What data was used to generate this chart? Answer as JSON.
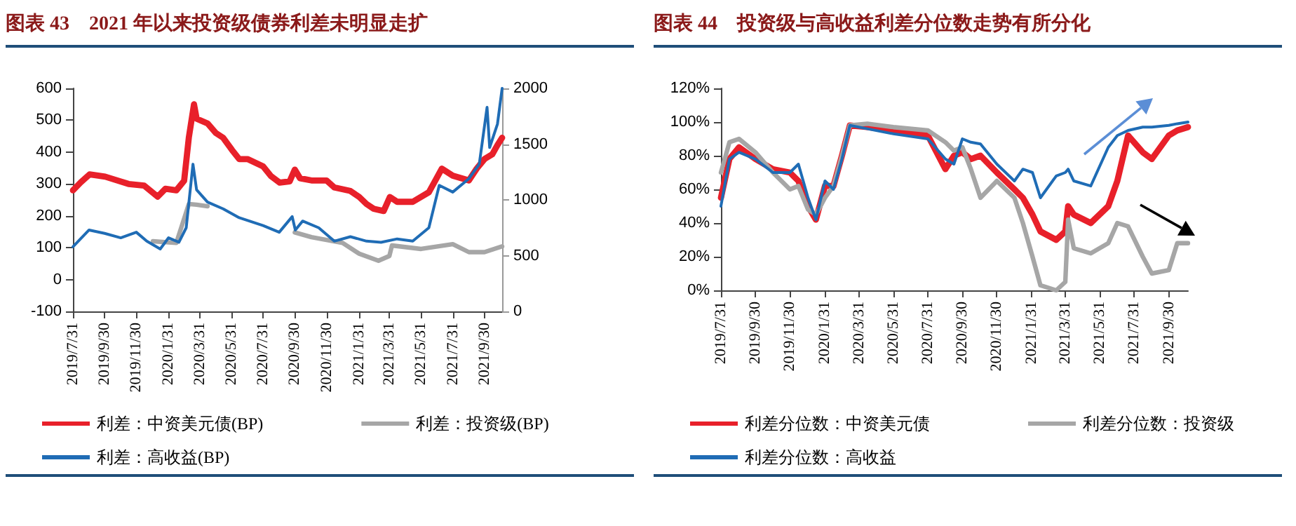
{
  "chart_data": [
    {
      "type": "line",
      "title": "图表 43　2021 年以来投资级债券利差未明显走扩",
      "legend": "bottom",
      "grid": false,
      "marker": "none",
      "line_style": "solid",
      "xlim": [
        "2019-07-31",
        "2021-11-03"
      ],
      "xticks": [
        {
          "value": "2019-07-31",
          "label": "2019/7/31"
        },
        {
          "value": "2019-09-30",
          "label": "2019/9/30"
        },
        {
          "value": "2019-11-30",
          "label": "2019/11/30"
        },
        {
          "value": "2020-01-31",
          "label": "2020/1/31"
        },
        {
          "value": "2020-03-31",
          "label": "2020/3/31"
        },
        {
          "value": "2020-05-31",
          "label": "2020/5/31"
        },
        {
          "value": "2020-07-31",
          "label": "2020/7/31"
        },
        {
          "value": "2020-09-30",
          "label": "2020/9/30"
        },
        {
          "value": "2020-11-30",
          "label": "2020/11/30"
        },
        {
          "value": "2021-01-31",
          "label": "2021/1/31"
        },
        {
          "value": "2021-03-31",
          "label": "2021/3/31"
        },
        {
          "value": "2021-05-31",
          "label": "2021/5/31"
        },
        {
          "value": "2021-07-31",
          "label": "2021/7/31"
        },
        {
          "value": "2021-09-30",
          "label": "2021/9/30"
        }
      ],
      "ylim": [
        -100,
        600
      ],
      "yticks": [
        -100,
        0,
        100,
        200,
        300,
        400,
        500,
        600
      ],
      "y2lim": [
        0,
        2000
      ],
      "y2ticks": [
        0,
        500,
        1000,
        1500,
        2000
      ],
      "series": [
        {
          "name": "利差：中资美元债(BP)",
          "color": "#e8202a",
          "x": [
            "2019-07-31",
            "2019-08-15",
            "2019-09-01",
            "2019-10-01",
            "2019-11-15",
            "2019-12-15",
            "2020-01-10",
            "2020-01-25",
            "2020-02-15",
            "2020-03-01",
            "2020-03-10",
            "2020-03-20",
            "2020-03-25",
            "2020-04-15",
            "2020-05-01",
            "2020-05-15",
            "2020-06-01",
            "2020-06-15",
            "2020-07-01",
            "2020-07-31",
            "2020-08-15",
            "2020-09-01",
            "2020-09-20",
            "2020-09-30",
            "2020-10-10",
            "2020-11-01",
            "2020-11-30",
            "2020-12-15",
            "2021-01-15",
            "2021-02-01",
            "2021-02-15",
            "2021-03-01",
            "2021-03-20",
            "2021-04-01",
            "2021-04-15",
            "2021-05-15",
            "2021-06-15",
            "2021-07-10",
            "2021-07-31",
            "2021-08-31",
            "2021-09-15",
            "2021-09-30",
            "2021-10-15",
            "2021-10-25",
            "2021-11-03"
          ],
          "values": [
            280,
            305,
            330,
            323,
            300,
            295,
            260,
            285,
            280,
            310,
            445,
            550,
            505,
            490,
            460,
            445,
            407,
            378,
            378,
            355,
            325,
            304,
            308,
            345,
            318,
            311,
            311,
            289,
            278,
            259,
            237,
            222,
            215,
            259,
            244,
            244,
            274,
            348,
            326,
            311,
            348,
            378,
            393,
            422,
            445
          ]
        },
        {
          "name": "利差：投资级(BP)",
          "color": "#a6a6a6",
          "x": [
            "2020-01-01",
            "2020-02-15",
            "2020-03-10",
            "2020-03-25",
            "2020-04-15",
            "2020-05-15",
            "2020-08-31",
            "2020-09-30",
            "2020-11-01",
            "2020-12-31",
            "2021-02-01",
            "2021-03-10",
            "2021-03-31",
            "2021-04-05",
            "2021-05-31",
            "2021-07-31",
            "2021-08-31",
            "2021-09-30",
            "2021-11-03"
          ],
          "values": [
            120,
            115,
            237,
            235,
            230,
            null,
            null,
            148,
            133,
            115,
            81,
            59,
            74,
            107,
            96,
            111,
            86,
            86,
            104
          ]
        },
        {
          "name": "利差：高收益(BP)",
          "color": "#1f6cb5",
          "axis": "y2",
          "x": [
            "2019-07-31",
            "2019-08-31",
            "2019-09-30",
            "2019-10-31",
            "2019-11-30",
            "2019-12-20",
            "2020-01-15",
            "2020-01-31",
            "2020-02-20",
            "2020-03-05",
            "2020-03-18",
            "2020-03-25",
            "2020-04-15",
            "2020-05-15",
            "2020-06-15",
            "2020-07-31",
            "2020-08-31",
            "2020-09-25",
            "2020-10-01",
            "2020-10-15",
            "2020-11-15",
            "2020-12-15",
            "2021-01-15",
            "2021-02-15",
            "2021-03-15",
            "2021-04-15",
            "2021-05-15",
            "2021-06-15",
            "2021-07-05",
            "2021-07-31",
            "2021-08-31",
            "2021-09-20",
            "2021-10-05",
            "2021-10-10",
            "2021-10-25",
            "2021-11-03"
          ],
          "values": [
            580,
            730,
            700,
            660,
            710,
            630,
            560,
            660,
            620,
            750,
            1320,
            1090,
            980,
            920,
            840,
            770,
            710,
            850,
            730,
            810,
            750,
            630,
            670,
            630,
            620,
            650,
            630,
            750,
            1130,
            1070,
            1190,
            1320,
            1830,
            1470,
            1680,
            2000
          ]
        }
      ]
    },
    {
      "type": "line",
      "title": "图表 44　投资级与高收益利差分位数走势有所分化",
      "legend": "bottom",
      "grid": false,
      "marker": "none",
      "line_style": "solid",
      "xlim": [
        "2019-07-31",
        "2021-11-03"
      ],
      "xticks": [
        {
          "value": "2019-07-31",
          "label": "2019/7/31"
        },
        {
          "value": "2019-09-30",
          "label": "2019/9/30"
        },
        {
          "value": "2019-11-30",
          "label": "2019/11/30"
        },
        {
          "value": "2020-01-31",
          "label": "2020/1/31"
        },
        {
          "value": "2020-03-31",
          "label": "2020/3/31"
        },
        {
          "value": "2020-05-31",
          "label": "2020/5/31"
        },
        {
          "value": "2020-07-31",
          "label": "2020/7/31"
        },
        {
          "value": "2020-09-30",
          "label": "2020/9/30"
        },
        {
          "value": "2020-11-30",
          "label": "2020/11/30"
        },
        {
          "value": "2021-01-31",
          "label": "2021/1/31"
        },
        {
          "value": "2021-03-31",
          "label": "2021/3/31"
        },
        {
          "value": "2021-05-31",
          "label": "2021/5/31"
        },
        {
          "value": "2021-07-31",
          "label": "2021/7/31"
        },
        {
          "value": "2021-09-30",
          "label": "2021/9/30"
        }
      ],
      "ylim": [
        0,
        120
      ],
      "yticks": [
        {
          "value": 0,
          "label": "0%"
        },
        {
          "value": 20,
          "label": "20%"
        },
        {
          "value": 40,
          "label": "40%"
        },
        {
          "value": 60,
          "label": "60%"
        },
        {
          "value": 80,
          "label": "80%"
        },
        {
          "value": 100,
          "label": "100%"
        },
        {
          "value": 120,
          "label": "120%"
        }
      ],
      "x": [
        "2019-07-31",
        "2019-08-15",
        "2019-09-01",
        "2019-09-30",
        "2019-10-31",
        "2019-11-30",
        "2019-12-15",
        "2020-01-01",
        "2020-01-15",
        "2020-01-31",
        "2020-02-15",
        "2020-03-01",
        "2020-03-15",
        "2020-04-15",
        "2020-05-31",
        "2020-07-31",
        "2020-08-31",
        "2020-09-15",
        "2020-09-30",
        "2020-10-15",
        "2020-11-01",
        "2020-11-30",
        "2020-12-31",
        "2021-01-15",
        "2021-02-01",
        "2021-02-15",
        "2021-03-15",
        "2021-03-31",
        "2021-04-05",
        "2021-04-15",
        "2021-05-15",
        "2021-06-15",
        "2021-07-01",
        "2021-07-20",
        "2021-08-15",
        "2021-08-31",
        "2021-09-30",
        "2021-10-15",
        "2021-11-03"
      ],
      "series": [
        {
          "name": "利差分位数：中资美元债",
          "color": "#e8202a",
          "values": [
            55,
            78,
            85,
            78,
            72,
            70,
            65,
            50,
            42,
            62,
            62,
            80,
            98,
            97,
            95,
            92,
            72,
            80,
            82,
            78,
            80,
            70,
            60,
            55,
            45,
            35,
            30,
            35,
            50,
            45,
            40,
            50,
            65,
            92,
            82,
            78,
            92,
            95,
            97
          ]
        },
        {
          "name": "利差分位数：投资级",
          "color": "#a6a6a6",
          "values": [
            70,
            88,
            90,
            82,
            70,
            60,
            62,
            48,
            45,
            55,
            62,
            80,
            98,
            99,
            97,
            95,
            88,
            83,
            85,
            72,
            55,
            65,
            55,
            40,
            20,
            3,
            0,
            5,
            42,
            25,
            22,
            28,
            40,
            38,
            20,
            10,
            12,
            28,
            28
          ]
        },
        {
          "name": "利差分位数：高收益",
          "color": "#1f6cb5",
          "values": [
            50,
            78,
            82,
            78,
            70,
            70,
            75,
            55,
            42,
            65,
            60,
            78,
            98,
            96,
            93,
            90,
            78,
            75,
            90,
            88,
            87,
            75,
            65,
            72,
            70,
            55,
            68,
            70,
            72,
            65,
            62,
            85,
            92,
            95,
            97,
            97,
            98,
            99,
            100
          ]
        }
      ]
    }
  ]
}
